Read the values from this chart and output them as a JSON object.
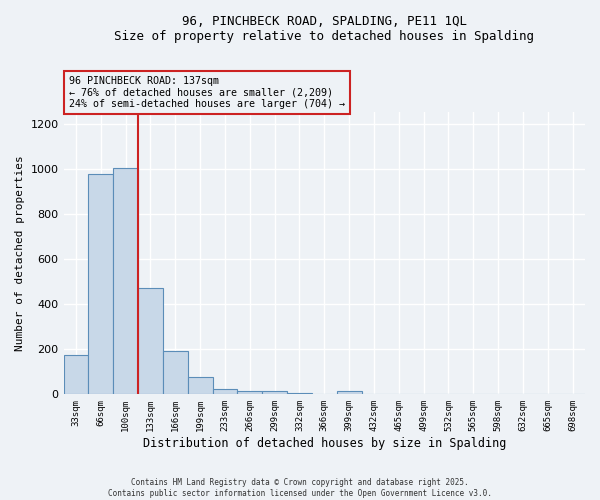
{
  "title_line1": "96, PINCHBECK ROAD, SPALDING, PE11 1QL",
  "title_line2": "Size of property relative to detached houses in Spalding",
  "xlabel": "Distribution of detached houses by size in Spalding",
  "ylabel": "Number of detached properties",
  "categories": [
    "33sqm",
    "66sqm",
    "100sqm",
    "133sqm",
    "166sqm",
    "199sqm",
    "233sqm",
    "266sqm",
    "299sqm",
    "332sqm",
    "366sqm",
    "399sqm",
    "432sqm",
    "465sqm",
    "499sqm",
    "532sqm",
    "565sqm",
    "598sqm",
    "632sqm",
    "665sqm",
    "698sqm"
  ],
  "values": [
    175,
    975,
    1005,
    470,
    190,
    75,
    22,
    15,
    13,
    7,
    0,
    13,
    0,
    0,
    0,
    0,
    0,
    0,
    0,
    0,
    0
  ],
  "bar_color": "#c8d8e8",
  "bar_edge_color": "#5b8db8",
  "ylim": [
    0,
    1250
  ],
  "yticks": [
    0,
    200,
    400,
    600,
    800,
    1000,
    1200
  ],
  "vline_x": 2.5,
  "annotation_line1": "96 PINCHBECK ROAD: 137sqm",
  "annotation_line2": "← 76% of detached houses are smaller (2,209)",
  "annotation_line3": "24% of semi-detached houses are larger (704) →",
  "vline_color": "#cc2222",
  "background_color": "#eef2f6",
  "grid_color": "#ffffff",
  "footer_line1": "Contains HM Land Registry data © Crown copyright and database right 2025.",
  "footer_line2": "Contains public sector information licensed under the Open Government Licence v3.0."
}
